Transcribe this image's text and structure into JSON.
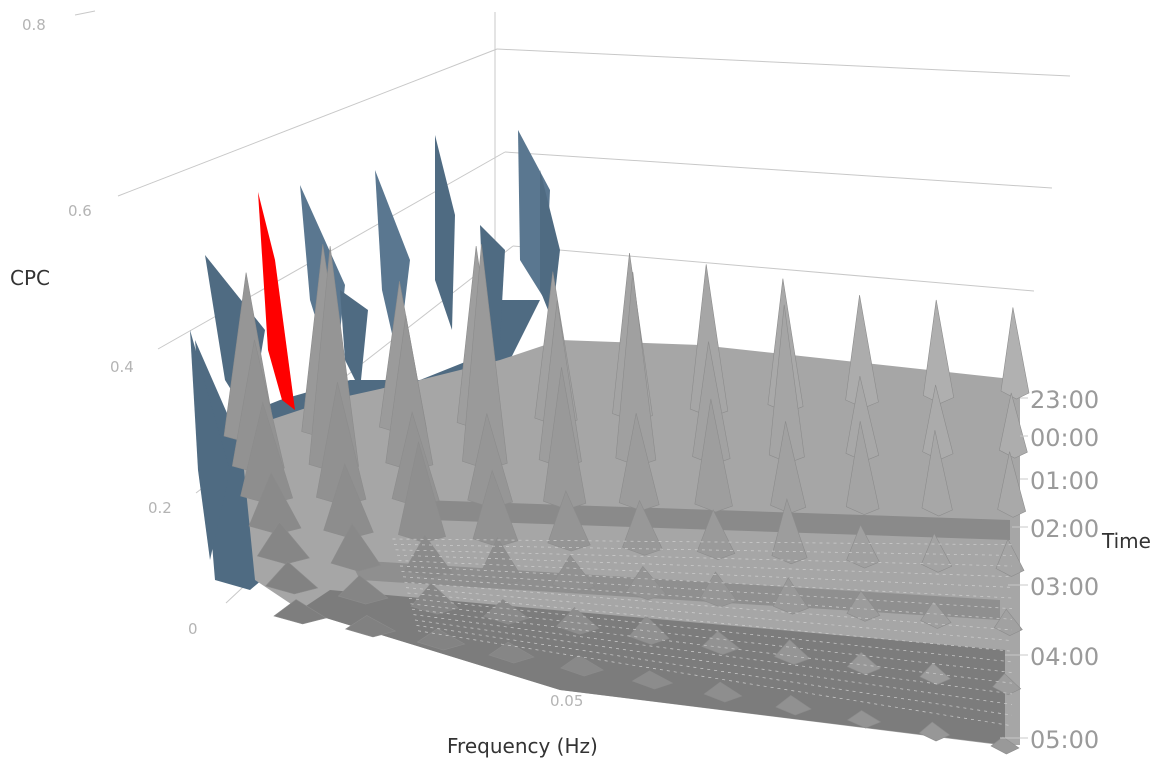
{
  "chart_data": {
    "type": "surface-3d",
    "title": "",
    "xlabel": "Frequency (Hz)",
    "ylabel": "Time",
    "zlabel": "CPC",
    "x_ticks": [
      "0.05"
    ],
    "y_ticks": [
      "23:00",
      "00:00",
      "01:00",
      "02:00",
      "03:00",
      "04:00",
      "05:00"
    ],
    "z_ticks": [
      "0",
      "0.2",
      "0.4",
      "0.6",
      "0.8"
    ],
    "zlim": [
      0,
      0.8
    ],
    "grid": true,
    "series": [
      {
        "values": [
          [
            0.3,
            0.36,
            0.29,
            0.37,
            0.32,
            0.37,
            0.35,
            0.32,
            0.28,
            0.27,
            0.25
          ],
          [
            0.25,
            0.46,
            0.32,
            0.5,
            0.38,
            0.47,
            0.3,
            0.42,
            0.22,
            0.2,
            0.18
          ],
          [
            0.2,
            0.26,
            0.2,
            0.21,
            0.35,
            0.24,
            0.3,
            0.25,
            0.27,
            0.26,
            0.2
          ],
          [
            0.12,
            0.16,
            0.24,
            0.18,
            0.14,
            0.13,
            0.12,
            0.18,
            0.11,
            0.1,
            0.1
          ],
          [
            0.08,
            0.1,
            0.09,
            0.11,
            0.08,
            0.07,
            0.08,
            0.09,
            0.07,
            0.06,
            0.06
          ],
          [
            0.06,
            0.05,
            0.06,
            0.04,
            0.05,
            0.06,
            0.04,
            0.05,
            0.04,
            0.04,
            0.04
          ],
          [
            0.04,
            0.03,
            0.03,
            0.03,
            0.03,
            0.02,
            0.03,
            0.03,
            0.02,
            0.03,
            0.02
          ]
        ]
      }
    ],
    "colors": {
      "surface": "#a6a6a6",
      "surface_dark": "#7a7a7a",
      "back_wall": "#4f6b82",
      "highlight": "#ff0000",
      "grid": "#c8c8c8"
    }
  }
}
